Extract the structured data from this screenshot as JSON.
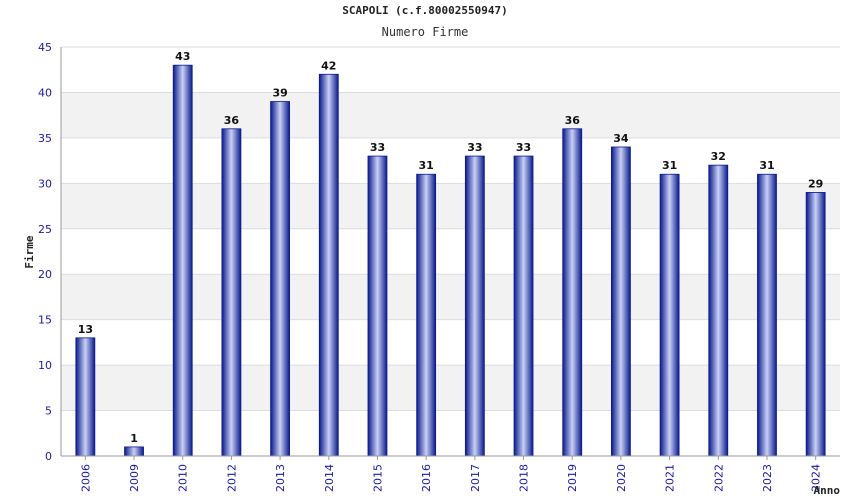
{
  "chart_data": {
    "type": "bar",
    "title": "SCAPOLI (c.f.80002550947)",
    "subtitle": "Numero Firme",
    "xlabel": "Anno",
    "ylabel": "Firme",
    "categories": [
      "2006",
      "2009",
      "2010",
      "2012",
      "2013",
      "2014",
      "2015",
      "2016",
      "2017",
      "2018",
      "2019",
      "2020",
      "2021",
      "2022",
      "2023",
      "2024"
    ],
    "values": [
      13,
      1,
      43,
      36,
      39,
      42,
      33,
      31,
      33,
      33,
      36,
      34,
      31,
      32,
      31,
      29
    ],
    "ylim": [
      0,
      45
    ],
    "yticks": [
      0,
      5,
      10,
      15,
      20,
      25,
      30,
      35,
      40,
      45
    ],
    "grid": true,
    "colors": {
      "bar": "#0a1a8c",
      "bar_highlight": "#c8d0f5",
      "tick": "#1a1aa6",
      "band": "#f2f2f2"
    }
  }
}
